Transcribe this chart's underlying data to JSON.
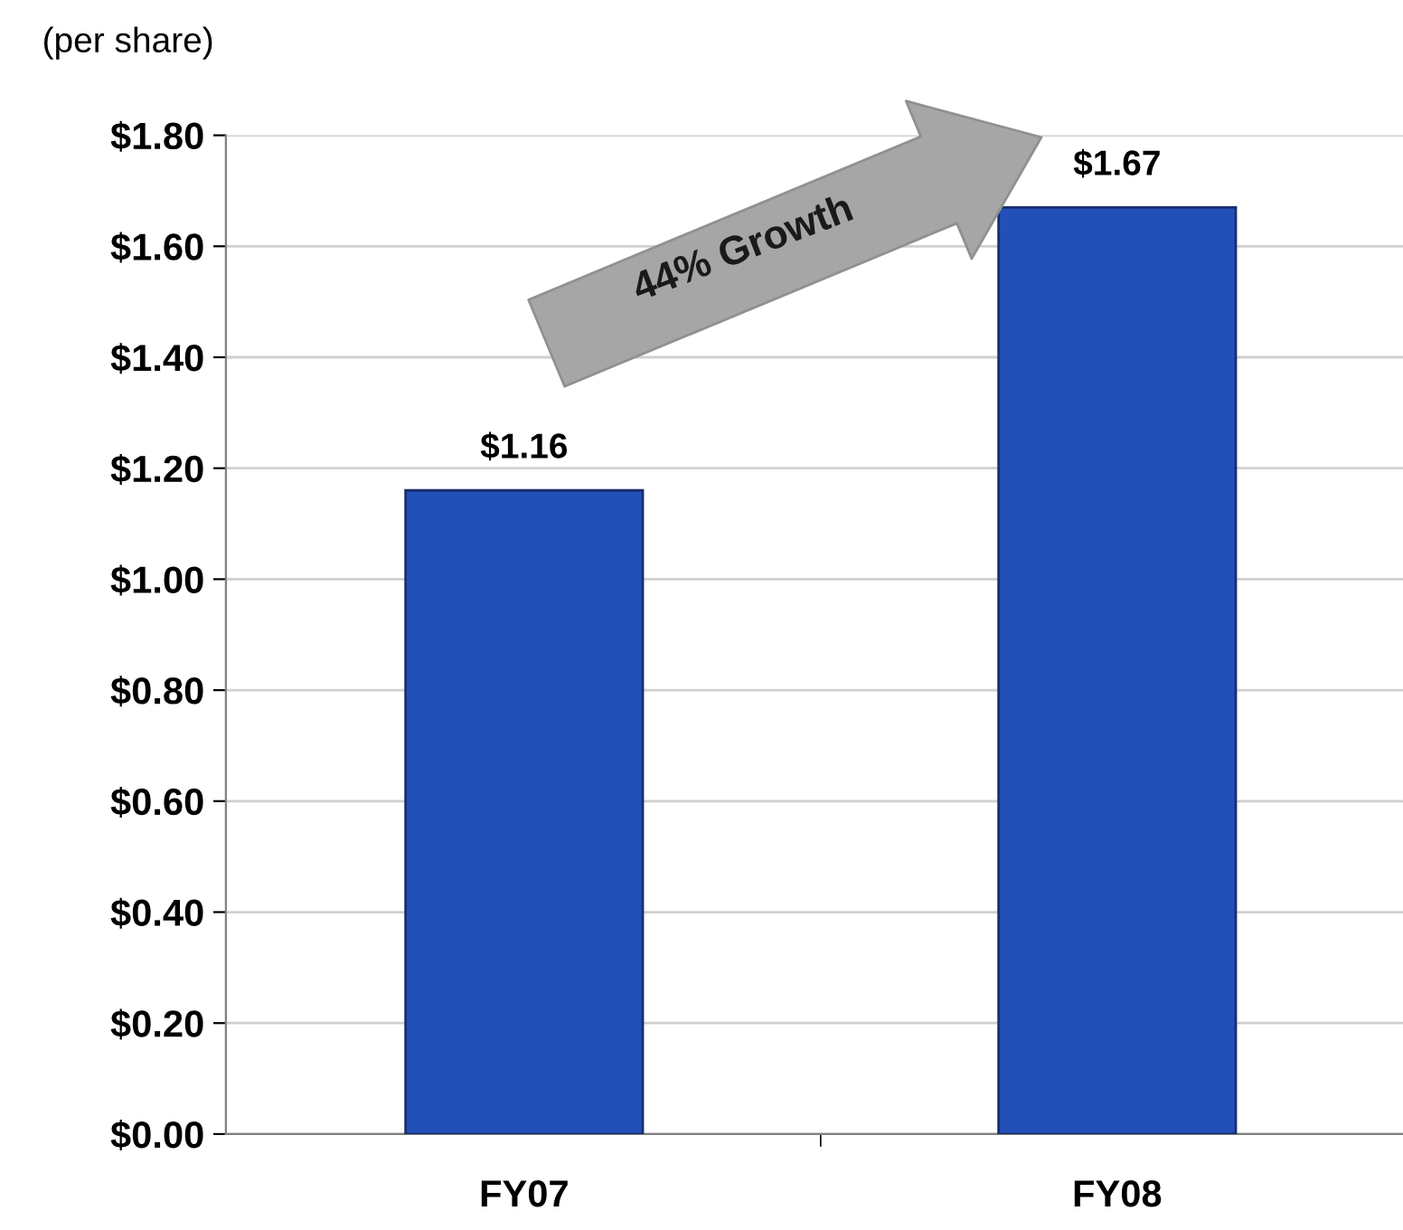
{
  "chart_data": {
    "type": "bar",
    "ylabel": "(per share)",
    "categories": [
      "FY07",
      "FY08"
    ],
    "values": [
      1.16,
      1.67
    ],
    "value_labels": [
      "$1.16",
      "$1.67"
    ],
    "color": "#2350b8",
    "ylim": [
      0,
      1.8
    ],
    "yticks": [
      {
        "value": 0,
        "label": "$0.00"
      },
      {
        "value": 0.2,
        "label": "$0.20"
      },
      {
        "value": 0.4,
        "label": "$0.40"
      },
      {
        "value": 0.6,
        "label": "$0.60"
      },
      {
        "value": 0.8,
        "label": "$0.80"
      },
      {
        "value": 1.0,
        "label": "$1.00"
      },
      {
        "value": 1.2,
        "label": "$1.20"
      },
      {
        "value": 1.4,
        "label": "$1.40"
      },
      {
        "value": 1.6,
        "label": "$1.60"
      },
      {
        "value": 1.8,
        "label": "$1.80"
      }
    ],
    "grid": "y",
    "annotations": [
      "44% Growth"
    ]
  }
}
